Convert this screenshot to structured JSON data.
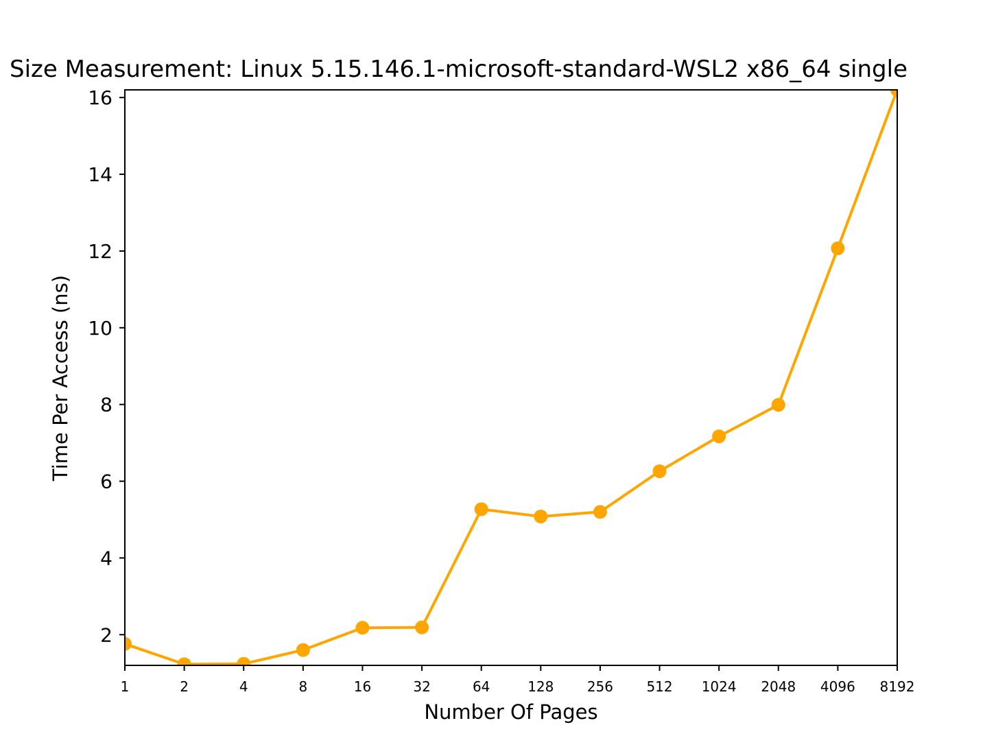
{
  "chart_data": {
    "type": "line",
    "title": "Size Measurement: Linux 5.15.146.1-microsoft-standard-WSL2 x86_64 single",
    "xlabel": "Number Of Pages",
    "ylabel": "Time Per Access (ns)",
    "x_scale": "log2",
    "categories": [
      "1",
      "2",
      "4",
      "8",
      "16",
      "32",
      "64",
      "128",
      "256",
      "512",
      "1024",
      "2048",
      "4096",
      "8192"
    ],
    "yticks": [
      "2",
      "4",
      "6",
      "8",
      "10",
      "12",
      "14",
      "16"
    ],
    "ylim": [
      1.2,
      16.2
    ],
    "grid": false,
    "series": [
      {
        "values": [
          1.76,
          1.23,
          1.24,
          1.6,
          2.18,
          2.19,
          5.27,
          5.08,
          5.2,
          6.26,
          7.17,
          7.99,
          12.07,
          16.2
        ],
        "color": "#ffa500",
        "marker": "circle"
      }
    ]
  }
}
